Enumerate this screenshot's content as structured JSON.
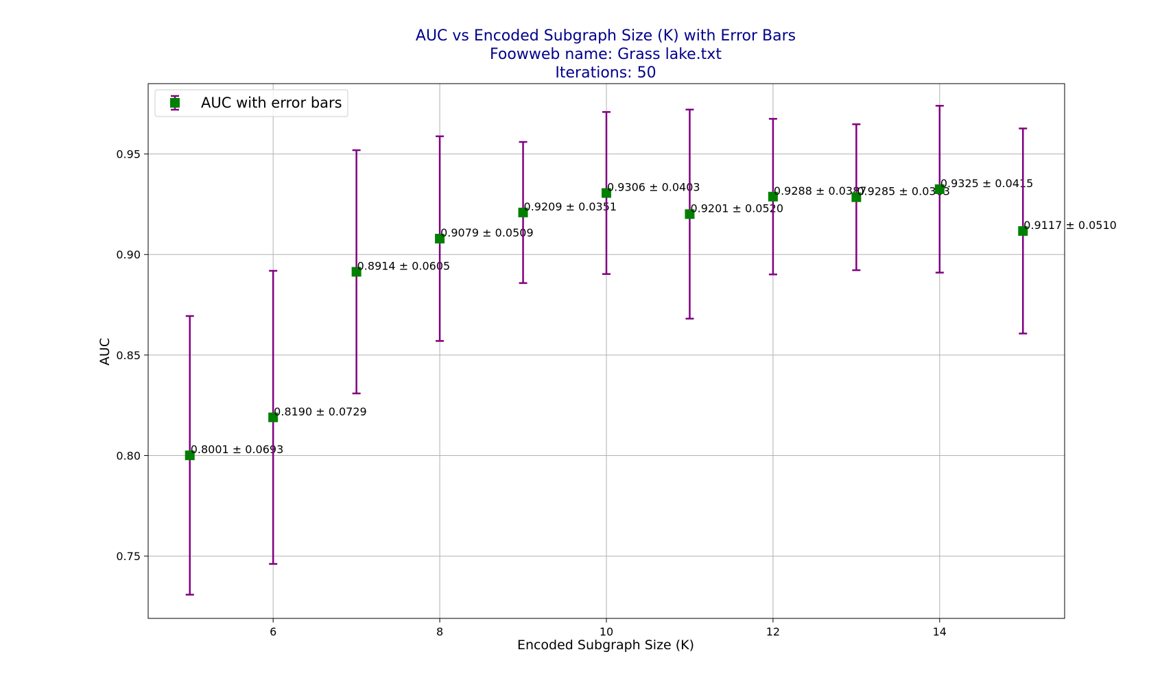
{
  "chart_data": {
    "type": "scatter",
    "title_lines": [
      "AUC vs Encoded Subgraph Size (K) with Error Bars",
      "Foowweb name: Grass lake.txt",
      "Iterations: 50"
    ],
    "xlabel": "Encoded Subgraph Size (K)",
    "ylabel": "AUC",
    "xlim": [
      4.5,
      15.5
    ],
    "ylim": [
      0.719,
      0.985
    ],
    "xticks": [
      6,
      8,
      10,
      12,
      14
    ],
    "yticks": [
      0.75,
      0.8,
      0.85,
      0.9,
      0.95
    ],
    "ytick_labels": [
      "0.75",
      "0.80",
      "0.85",
      "0.90",
      "0.95"
    ],
    "grid": true,
    "legend": {
      "placement": "upper-left",
      "entries": [
        "AUC with error bars"
      ]
    },
    "series": [
      {
        "name": "AUC with error bars",
        "x": [
          5,
          6,
          7,
          8,
          9,
          10,
          11,
          12,
          13,
          14,
          15
        ],
        "y": [
          0.8001,
          0.819,
          0.8914,
          0.9079,
          0.9209,
          0.9306,
          0.9201,
          0.9288,
          0.9285,
          0.9325,
          0.9117
        ],
        "error": [
          0.0693,
          0.0729,
          0.0605,
          0.0509,
          0.0351,
          0.0403,
          0.052,
          0.0387,
          0.0363,
          0.0415,
          0.051
        ],
        "labels": [
          "0.8001 ± 0.0693",
          "0.8190 ± 0.0729",
          "0.8914 ± 0.0605",
          "0.9079 ± 0.0509",
          "0.9209 ± 0.0351",
          "0.9306 ± 0.0403",
          "0.9201 ± 0.0520",
          "0.9288 ± 0.0387",
          "0.9285 ± 0.0363",
          "0.9325 ± 0.0415",
          "0.9117 ± 0.0510"
        ]
      }
    ],
    "colors": {
      "marker": "#008000",
      "errorbar": "#800080",
      "title": "#00008b",
      "grid": "#b0b0b0"
    }
  }
}
